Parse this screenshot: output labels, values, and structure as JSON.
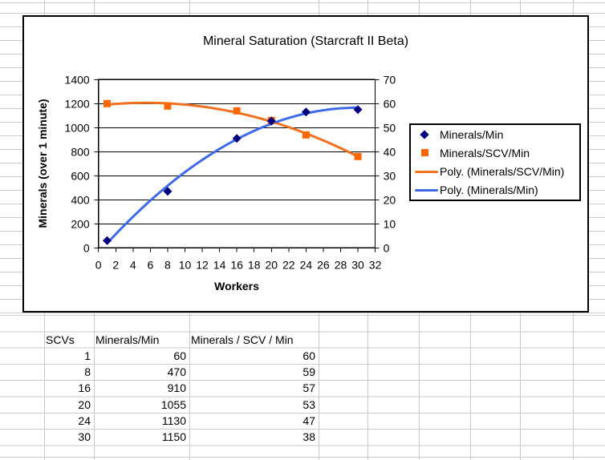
{
  "sheet": {
    "gridline_color": "#c9c9c9",
    "table": {
      "headers": [
        "SCVs",
        "Minerals/Min",
        "Minerals / SCV / Min"
      ],
      "rows": [
        [
          1,
          60,
          60
        ],
        [
          8,
          470,
          59
        ],
        [
          16,
          910,
          57
        ],
        [
          20,
          1055,
          53
        ],
        [
          24,
          1130,
          47
        ],
        [
          30,
          1150,
          38
        ]
      ]
    }
  },
  "chart_data": {
    "type": "scatter",
    "title": "Mineral Saturation (Starcraft II Beta)",
    "xlabel": "Workers",
    "ylabel": "Minerals (over 1 minute)",
    "grid": "horizontal",
    "legend_position": "right",
    "axes": {
      "x": {
        "min": 0,
        "max": 32,
        "step": 2
      },
      "left": {
        "min": 0,
        "max": 1400,
        "step": 200
      },
      "right": {
        "min": 0,
        "max": 70,
        "step": 10
      }
    },
    "series": [
      {
        "name": "Minerals/Min",
        "axis": "left",
        "marker": "diamond",
        "color": "#000080",
        "x": [
          1,
          8,
          16,
          20,
          24,
          30
        ],
        "y": [
          60,
          470,
          910,
          1055,
          1130,
          1150
        ]
      },
      {
        "name": "Minerals/SCV/Min",
        "axis": "right",
        "marker": "square",
        "color": "#ff6600",
        "x": [
          1,
          8,
          16,
          20,
          24,
          30
        ],
        "y": [
          60,
          59,
          57,
          53,
          47,
          38
        ]
      }
    ],
    "trendlines": [
      {
        "label": "Poly. (Minerals/SCV/Min)",
        "series": 1,
        "order": 2,
        "color": "#f07020"
      },
      {
        "label": "Poly. (Minerals/Min)",
        "series": 0,
        "order": 2,
        "color": "#3d6be8"
      }
    ],
    "legend": {
      "items": [
        {
          "label": "Minerals/Min",
          "marker": "diamond",
          "color": "#000080"
        },
        {
          "label": "Minerals/SCV/Min",
          "marker": "square",
          "color": "#ff6600"
        },
        {
          "label": "Poly. (Minerals/SCV/Min)",
          "marker": "line",
          "color": "#f07020"
        },
        {
          "label": "Poly. (Minerals/Min)",
          "marker": "line",
          "color": "#3d6be8"
        }
      ]
    }
  }
}
